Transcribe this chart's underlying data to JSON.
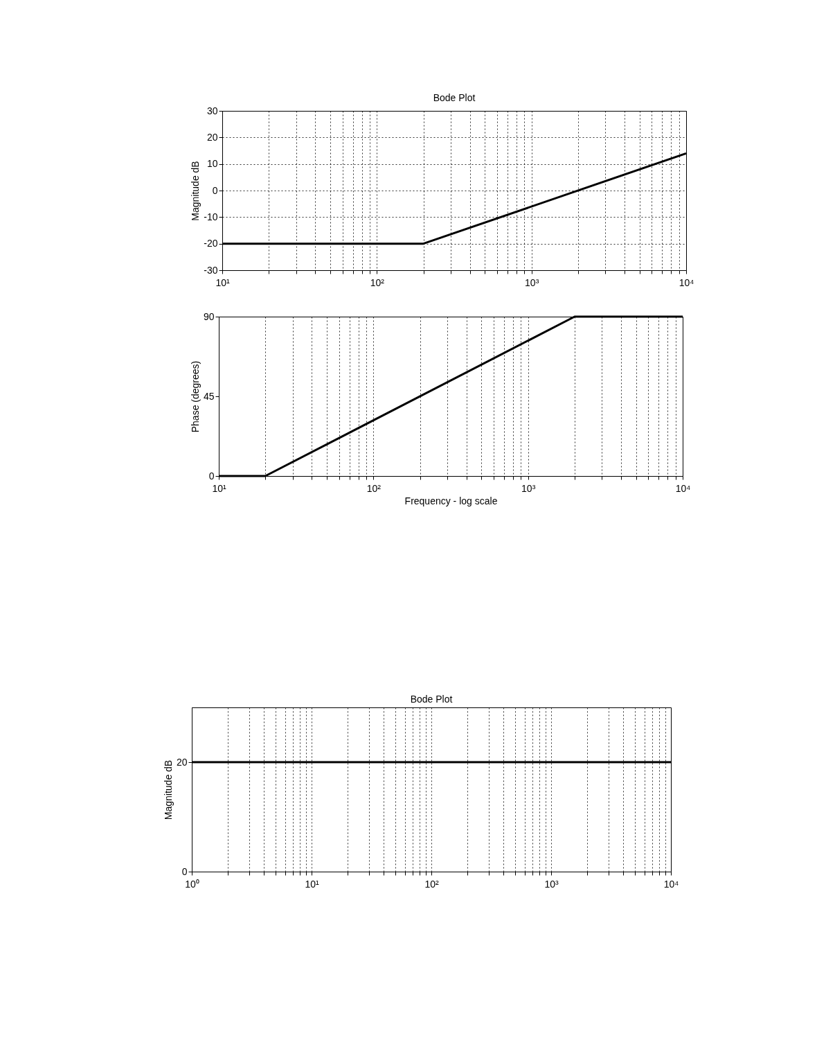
{
  "chart_data": [
    {
      "type": "line",
      "title": "Bode Plot",
      "ylabel": "Magnitude dB",
      "log": "x",
      "grid": true,
      "xlim": [
        10,
        10000
      ],
      "ylim": [
        -30,
        30
      ],
      "yticks": [
        -30,
        -20,
        -10,
        0,
        10,
        20,
        30
      ],
      "xticks": [
        {
          "value": 10,
          "label": "10¹"
        },
        {
          "value": 20,
          "label": null
        },
        {
          "value": 30,
          "label": null
        },
        {
          "value": 40,
          "label": null
        },
        {
          "value": 50,
          "label": null
        },
        {
          "value": 60,
          "label": null
        },
        {
          "value": 70,
          "label": null
        },
        {
          "value": 80,
          "label": null
        },
        {
          "value": 90,
          "label": null
        },
        {
          "value": 100,
          "label": "10²"
        },
        {
          "value": 200,
          "label": null
        },
        {
          "value": 300,
          "label": null
        },
        {
          "value": 400,
          "label": null
        },
        {
          "value": 500,
          "label": null
        },
        {
          "value": 600,
          "label": null
        },
        {
          "value": 700,
          "label": null
        },
        {
          "value": 800,
          "label": null
        },
        {
          "value": 900,
          "label": null
        },
        {
          "value": 1000,
          "label": "10³"
        },
        {
          "value": 2000,
          "label": null
        },
        {
          "value": 3000,
          "label": null
        },
        {
          "value": 4000,
          "label": null
        },
        {
          "value": 5000,
          "label": null
        },
        {
          "value": 6000,
          "label": null
        },
        {
          "value": 7000,
          "label": null
        },
        {
          "value": 8000,
          "label": null
        },
        {
          "value": 9000,
          "label": null
        },
        {
          "value": 10000,
          "label": "10⁴"
        }
      ],
      "series": [
        {
          "color": "#000000",
          "x": [
            10,
            200,
            10000
          ],
          "values": [
            -20,
            -20,
            14
          ]
        }
      ]
    },
    {
      "type": "line",
      "xlabel": "Frequency - log scale",
      "ylabel": "Phase (degrees)",
      "log": "x",
      "grid": "x",
      "xlim": [
        10,
        10000
      ],
      "ylim": [
        0,
        90
      ],
      "yticks": [
        0,
        45,
        90
      ],
      "xticks": [
        {
          "value": 10,
          "label": "10¹"
        },
        {
          "value": 20,
          "label": null
        },
        {
          "value": 30,
          "label": null
        },
        {
          "value": 40,
          "label": null
        },
        {
          "value": 50,
          "label": null
        },
        {
          "value": 60,
          "label": null
        },
        {
          "value": 70,
          "label": null
        },
        {
          "value": 80,
          "label": null
        },
        {
          "value": 90,
          "label": null
        },
        {
          "value": 100,
          "label": "10²"
        },
        {
          "value": 200,
          "label": null
        },
        {
          "value": 300,
          "label": null
        },
        {
          "value": 400,
          "label": null
        },
        {
          "value": 500,
          "label": null
        },
        {
          "value": 600,
          "label": null
        },
        {
          "value": 700,
          "label": null
        },
        {
          "value": 800,
          "label": null
        },
        {
          "value": 900,
          "label": null
        },
        {
          "value": 1000,
          "label": "10³"
        },
        {
          "value": 2000,
          "label": null
        },
        {
          "value": 3000,
          "label": null
        },
        {
          "value": 4000,
          "label": null
        },
        {
          "value": 5000,
          "label": null
        },
        {
          "value": 6000,
          "label": null
        },
        {
          "value": 7000,
          "label": null
        },
        {
          "value": 8000,
          "label": null
        },
        {
          "value": 9000,
          "label": null
        },
        {
          "value": 10000,
          "label": "10⁴"
        }
      ],
      "series": [
        {
          "color": "#000000",
          "x": [
            10,
            20,
            2000,
            10000
          ],
          "values": [
            0,
            0,
            90,
            90
          ]
        }
      ]
    },
    {
      "type": "line",
      "title": "Bode Plot",
      "ylabel": "Magnitude dB",
      "log": "x",
      "grid": "x",
      "xlim": [
        1,
        10000
      ],
      "ylim": [
        0,
        30
      ],
      "yticks": [
        0,
        20
      ],
      "xticks": [
        {
          "value": 1,
          "label": "10⁰"
        },
        {
          "value": 2,
          "label": null
        },
        {
          "value": 3,
          "label": null
        },
        {
          "value": 4,
          "label": null
        },
        {
          "value": 5,
          "label": null
        },
        {
          "value": 6,
          "label": null
        },
        {
          "value": 7,
          "label": null
        },
        {
          "value": 8,
          "label": null
        },
        {
          "value": 9,
          "label": null
        },
        {
          "value": 10,
          "label": "10¹"
        },
        {
          "value": 20,
          "label": null
        },
        {
          "value": 30,
          "label": null
        },
        {
          "value": 40,
          "label": null
        },
        {
          "value": 50,
          "label": null
        },
        {
          "value": 60,
          "label": null
        },
        {
          "value": 70,
          "label": null
        },
        {
          "value": 80,
          "label": null
        },
        {
          "value": 90,
          "label": null
        },
        {
          "value": 100,
          "label": "10²"
        },
        {
          "value": 200,
          "label": null
        },
        {
          "value": 300,
          "label": null
        },
        {
          "value": 400,
          "label": null
        },
        {
          "value": 500,
          "label": null
        },
        {
          "value": 600,
          "label": null
        },
        {
          "value": 700,
          "label": null
        },
        {
          "value": 800,
          "label": null
        },
        {
          "value": 900,
          "label": null
        },
        {
          "value": 1000,
          "label": "10³"
        },
        {
          "value": 2000,
          "label": null
        },
        {
          "value": 3000,
          "label": null
        },
        {
          "value": 4000,
          "label": null
        },
        {
          "value": 5000,
          "label": null
        },
        {
          "value": 6000,
          "label": null
        },
        {
          "value": 7000,
          "label": null
        },
        {
          "value": 8000,
          "label": null
        },
        {
          "value": 9000,
          "label": null
        },
        {
          "value": 10000,
          "label": "10⁴"
        }
      ],
      "series": [
        {
          "color": "#000000",
          "x": [
            1,
            10000
          ],
          "values": [
            20,
            20
          ]
        }
      ]
    }
  ]
}
